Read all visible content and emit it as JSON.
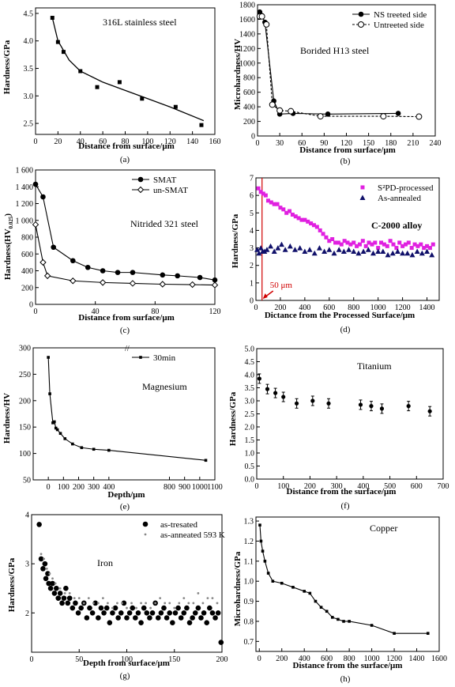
{
  "chart_data": [
    {
      "id": "a",
      "type": "scatter",
      "panel_label": "(a)",
      "title": "316L stainless steel",
      "xlabel": "Distance from surface/μm",
      "ylabel": "Hardness/GPa",
      "xlim": [
        0,
        160
      ],
      "ylim": [
        2.3,
        4.6
      ],
      "xticks": [
        0,
        20,
        40,
        60,
        80,
        100,
        120,
        140,
        160
      ],
      "yticks": [
        2.5,
        3.0,
        3.5,
        4.0,
        4.5
      ],
      "yfmt": 1,
      "series": [
        {
          "name": "",
          "marker": "square",
          "color": "#000000",
          "x": [
            15,
            20,
            25,
            40,
            55,
            75,
            95,
            125,
            148
          ],
          "y": [
            4.42,
            3.98,
            3.8,
            3.45,
            3.16,
            3.25,
            2.95,
            2.8,
            2.47
          ]
        },
        {
          "name": "",
          "marker": "none",
          "line": "curve",
          "color": "#000000",
          "x": [
            15,
            20,
            30,
            40,
            60,
            80,
            100,
            120,
            150
          ],
          "y": [
            4.42,
            4.0,
            3.65,
            3.45,
            3.25,
            3.1,
            2.95,
            2.8,
            2.55
          ]
        }
      ]
    },
    {
      "id": "b",
      "type": "line",
      "panel_label": "(b)",
      "title": "Borided H13 steel",
      "xlabel": "Distance from surface/μm",
      "ylabel": "Microhardness/HV",
      "xlim": [
        0,
        240
      ],
      "ylim": [
        0,
        1800
      ],
      "xticks": [
        0,
        30,
        60,
        90,
        120,
        150,
        180,
        210,
        240
      ],
      "yticks": [
        0,
        200,
        400,
        600,
        800,
        1000,
        1200,
        1400,
        1600,
        1800
      ],
      "legend": "top-right",
      "series": [
        {
          "name": "NS treeted side",
          "marker": "filled-circle",
          "color": "#000000",
          "x": [
            3,
            6,
            10,
            22,
            30,
            48,
            95,
            190
          ],
          "y": [
            1700,
            1650,
            1560,
            480,
            300,
            310,
            300,
            310
          ]
        },
        {
          "name": "Untreeted side",
          "marker": "open-circle",
          "dash": true,
          "color": "#000000",
          "x": [
            3,
            6,
            12,
            20,
            30,
            45,
            85,
            170,
            218
          ],
          "y": [
            1640,
            1640,
            1530,
            430,
            350,
            340,
            270,
            270,
            265
          ]
        }
      ]
    },
    {
      "id": "c",
      "type": "line",
      "panel_label": "(c)",
      "title": "Nitrided 321 steel",
      "xlabel": "Distance from surface/μm",
      "ylabel": "Hardness(HV",
      "ylabel_sub": "0.025",
      "ylabel_suffix": ")",
      "xlim": [
        0,
        120
      ],
      "ylim": [
        0,
        1600
      ],
      "xticks": [
        0,
        40,
        80,
        120
      ],
      "yticks": [
        0,
        200,
        400,
        600,
        800,
        1000,
        1200,
        1400,
        1600
      ],
      "yticklabels": [
        "0",
        "200",
        "400",
        "600",
        "800",
        "1 000",
        "1 200",
        "1 400",
        "1 600"
      ],
      "legend": "top-right",
      "series": [
        {
          "name": "SMAT",
          "marker": "filled-circle",
          "color": "#000000",
          "x": [
            0,
            5,
            12,
            25,
            35,
            45,
            55,
            65,
            85,
            95,
            110,
            120
          ],
          "y": [
            1430,
            1280,
            680,
            520,
            440,
            400,
            380,
            380,
            350,
            340,
            320,
            290
          ]
        },
        {
          "name": "un-SMAT",
          "marker": "open-diamond",
          "color": "#000000",
          "x": [
            0,
            5,
            8,
            25,
            45,
            65,
            85,
            105,
            120
          ],
          "y": [
            950,
            500,
            340,
            280,
            260,
            250,
            240,
            235,
            230
          ]
        }
      ]
    },
    {
      "id": "d",
      "type": "scatter",
      "panel_label": "(d)",
      "title": "C-2000 alloy",
      "xlabel": "Dictance from the Processed Surface/μm",
      "ylabel": "Hardness/GPa",
      "xlim": [
        0,
        1500
      ],
      "ylim": [
        0,
        7
      ],
      "xticks": [
        0,
        200,
        400,
        600,
        800,
        1000,
        1200,
        1400
      ],
      "yticks": [
        0,
        1,
        2,
        3,
        4,
        5,
        6,
        7
      ],
      "legend": "top-right",
      "annotation": {
        "text": "50 μm",
        "x": 50,
        "color": "#d00000"
      },
      "series": [
        {
          "name": "S²PD-processed",
          "marker": "square",
          "color": "#e020e0",
          "x": [
            20,
            40,
            60,
            80,
            100,
            125,
            150,
            175,
            200,
            225,
            250,
            275,
            300,
            325,
            350,
            375,
            400,
            425,
            450,
            475,
            500,
            525,
            550,
            575,
            600,
            625,
            650,
            675,
            700,
            725,
            750,
            775,
            800,
            825,
            850,
            875,
            900,
            925,
            950,
            975,
            1000,
            1025,
            1050,
            1075,
            1100,
            1125,
            1150,
            1175,
            1200,
            1225,
            1250,
            1275,
            1300,
            1325,
            1350,
            1375,
            1400,
            1425,
            1450
          ],
          "y": [
            6.4,
            6.2,
            6.1,
            6.0,
            5.7,
            5.6,
            5.5,
            5.5,
            5.3,
            5.2,
            5.0,
            5.1,
            4.9,
            4.8,
            4.7,
            4.6,
            4.6,
            4.5,
            4.4,
            4.3,
            4.2,
            4.0,
            3.8,
            3.6,
            3.4,
            3.5,
            3.3,
            3.3,
            3.2,
            3.4,
            3.3,
            3.2,
            3.3,
            3.1,
            3.2,
            3.4,
            3.1,
            3.3,
            3.2,
            3.3,
            3.0,
            3.3,
            3.2,
            3.1,
            3.4,
            3.2,
            3.0,
            3.3,
            3.1,
            3.2,
            3.3,
            3.0,
            3.2,
            3.1,
            3.2,
            3.0,
            3.1,
            3.0,
            3.2
          ]
        },
        {
          "name": "As-annealed",
          "marker": "triangle",
          "color": "#10106a",
          "x": [
            10,
            25,
            40,
            55,
            70,
            90,
            120,
            150,
            180,
            210,
            240,
            280,
            320,
            360,
            400,
            440,
            480,
            520,
            560,
            600,
            640,
            680,
            720,
            760,
            800,
            840,
            880,
            920,
            960,
            1000,
            1040,
            1080,
            1120,
            1160,
            1200,
            1240,
            1280,
            1320,
            1360,
            1400,
            1440
          ],
          "y": [
            2.9,
            2.7,
            3.0,
            2.8,
            2.8,
            2.9,
            3.1,
            2.8,
            3.0,
            3.2,
            2.9,
            3.1,
            2.9,
            3.0,
            2.8,
            2.9,
            2.7,
            3.0,
            2.8,
            2.9,
            2.7,
            2.9,
            2.8,
            2.9,
            2.8,
            2.7,
            2.8,
            2.9,
            2.7,
            2.8,
            2.8,
            2.6,
            2.7,
            2.8,
            2.7,
            2.7,
            2.6,
            2.8,
            2.7,
            2.8,
            2.6
          ]
        }
      ]
    },
    {
      "id": "e",
      "type": "line",
      "panel_label": "(e)",
      "title": "Magnesium",
      "xlabel": "Depth/μm",
      "ylabel": "Hardness/HV",
      "xlim": [
        -100,
        1100
      ],
      "ylim": [
        50,
        300
      ],
      "xticks": [
        0,
        100,
        200,
        300,
        400,
        800,
        900,
        1000,
        1100
      ],
      "yticks": [
        50,
        100,
        150,
        200,
        250,
        300
      ],
      "legend": "top-right",
      "series": [
        {
          "name": "30min",
          "marker": "small-square",
          "color": "#000000",
          "x": [
            0,
            10,
            30,
            40,
            50,
            60,
            80,
            110,
            160,
            220,
            300,
            400,
            1040
          ],
          "y": [
            282,
            213,
            158,
            160,
            148,
            145,
            138,
            128,
            118,
            111,
            108,
            106,
            87
          ]
        }
      ]
    },
    {
      "id": "f",
      "type": "scatter",
      "panel_label": "(f)",
      "title": "Titanium",
      "xlabel": "Distance from the surface/μm",
      "ylabel": "Hardness/GPa",
      "xlim": [
        0,
        700
      ],
      "ylim": [
        0,
        5
      ],
      "xticks": [
        0,
        100,
        200,
        300,
        400,
        500,
        600,
        700
      ],
      "yticks": [
        0,
        0.5,
        1.0,
        1.5,
        2.0,
        2.5,
        3.0,
        3.5,
        4.0,
        4.5,
        5.0
      ],
      "yfmt": 1,
      "series": [
        {
          "name": "",
          "marker": "filled-circle-err",
          "color": "#000000",
          "x": [
            10,
            40,
            70,
            100,
            150,
            210,
            270,
            390,
            430,
            470,
            570,
            650
          ],
          "y": [
            3.85,
            3.45,
            3.3,
            3.15,
            2.9,
            3.0,
            2.9,
            2.85,
            2.8,
            2.7,
            2.8,
            2.6
          ]
        }
      ]
    },
    {
      "id": "g",
      "type": "scatter",
      "panel_label": "(g)",
      "title": "Iron",
      "xlabel": "Depth from surface/μm",
      "ylabel": "Hardness/GPa",
      "xlim": [
        0,
        200
      ],
      "ylim": [
        1.2,
        4
      ],
      "xticks": [
        0,
        50,
        100,
        150,
        200
      ],
      "yticks": [
        2,
        3,
        4
      ],
      "legend": "top-right",
      "series": [
        {
          "name": "as-tresated",
          "marker": "filled-circle",
          "color": "#000000",
          "x": [
            8,
            10,
            12,
            14,
            15,
            17,
            18,
            20,
            22,
            24,
            26,
            28,
            30,
            32,
            34,
            36,
            38,
            40,
            43,
            46,
            49,
            52,
            55,
            58,
            61,
            64,
            67,
            70,
            73,
            76,
            79,
            82,
            85,
            88,
            91,
            94,
            97,
            100,
            103,
            106,
            109,
            112,
            115,
            118,
            121,
            124,
            127,
            130,
            133,
            136,
            139,
            142,
            145,
            148,
            151,
            154,
            157,
            160,
            163,
            166,
            169,
            172,
            175,
            178,
            181,
            184,
            187,
            190,
            193,
            196,
            199
          ],
          "y": [
            3.8,
            3.1,
            2.9,
            3.0,
            2.7,
            2.8,
            2.6,
            2.5,
            2.6,
            2.4,
            2.5,
            2.3,
            2.4,
            2.2,
            2.3,
            2.5,
            2.2,
            2.3,
            2.1,
            2.2,
            2.0,
            2.1,
            2.2,
            1.9,
            2.1,
            2.0,
            2.2,
            1.9,
            2.1,
            2.0,
            2.1,
            1.8,
            2.0,
            2.1,
            1.9,
            2.0,
            2.2,
            1.9,
            2.0,
            2.1,
            1.9,
            2.0,
            1.8,
            2.1,
            2.0,
            1.9,
            2.0,
            2.2,
            1.9,
            2.0,
            2.1,
            1.9,
            2.0,
            1.8,
            2.0,
            2.1,
            1.9,
            2.0,
            2.1,
            1.8,
            1.9,
            2.0,
            2.1,
            1.9,
            2.0,
            1.8,
            2.1,
            2.0,
            1.9,
            2.0,
            1.4
          ]
        },
        {
          "name": "as-anneated 593 K",
          "marker": "small-dot",
          "color": "#888888",
          "x": [
            10,
            13,
            16,
            19,
            22,
            25,
            30,
            35,
            40,
            45,
            50,
            55,
            60,
            65,
            70,
            75,
            80,
            85,
            90,
            95,
            100,
            105,
            110,
            115,
            120,
            125,
            130,
            135,
            140,
            145,
            150,
            155,
            160,
            165,
            170,
            175,
            180,
            185,
            190,
            195
          ],
          "y": [
            3.2,
            3.1,
            2.9,
            2.8,
            2.7,
            2.6,
            2.5,
            2.4,
            2.4,
            2.3,
            2.3,
            2.2,
            2.3,
            2.2,
            2.2,
            2.3,
            2.2,
            2.1,
            2.2,
            2.2,
            2.1,
            2.2,
            2.1,
            2.2,
            2.2,
            2.1,
            2.2,
            2.3,
            2.2,
            2.2,
            2.1,
            2.2,
            2.3,
            2.2,
            2.2,
            2.4,
            2.2,
            2.3,
            2.3,
            2.2
          ]
        }
      ]
    },
    {
      "id": "h",
      "type": "line",
      "panel_label": "(h)",
      "title": "Copper",
      "xlabel": "Distance from the surface/μm",
      "ylabel": "Microhardness/GPa",
      "xlim": [
        -30,
        1600
      ],
      "ylim": [
        0.65,
        1.32
      ],
      "xticks": [
        0,
        200,
        400,
        600,
        800,
        1000,
        1200,
        1400,
        1600
      ],
      "yticks": [
        0.7,
        0.8,
        0.9,
        1.0,
        1.1,
        1.2,
        1.3
      ],
      "yfmt": 1,
      "series": [
        {
          "name": "",
          "marker": "small-square",
          "color": "#000000",
          "x": [
            5,
            15,
            30,
            50,
            80,
            120,
            200,
            300,
            400,
            450,
            500,
            550,
            600,
            650,
            700,
            750,
            800,
            1000,
            1200,
            1500
          ],
          "y": [
            1.28,
            1.2,
            1.15,
            1.1,
            1.04,
            1.0,
            0.99,
            0.97,
            0.95,
            0.94,
            0.9,
            0.87,
            0.85,
            0.82,
            0.81,
            0.8,
            0.8,
            0.78,
            0.74,
            0.74
          ]
        }
      ]
    }
  ]
}
